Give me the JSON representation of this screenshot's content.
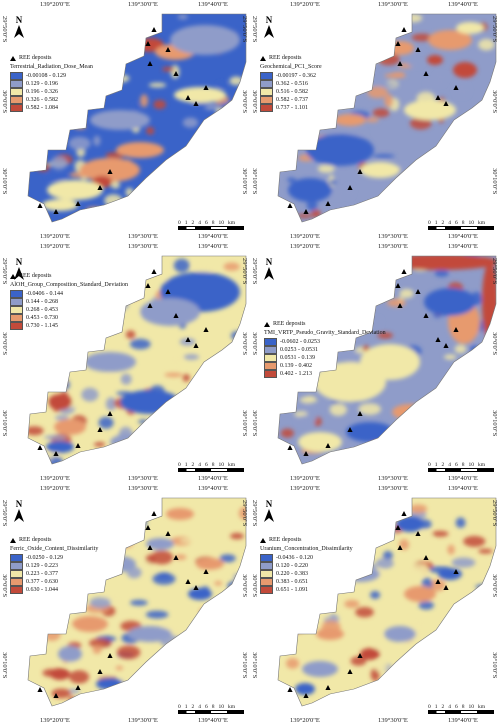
{
  "common": {
    "deposit_label": "REE deposits",
    "north": "N",
    "scale_ticks": [
      "0",
      "1",
      "2",
      "4",
      "6",
      "8",
      "10"
    ],
    "scale_unit": "km",
    "colors": [
      "#3a63c8",
      "#8f9cc9",
      "#f1e8a8",
      "#e79a6e",
      "#c24a3a"
    ],
    "lon_labels": [
      "139°20'0\"E",
      "139°30'0\"E",
      "139°40'0\"E"
    ],
    "lat_labels": [
      "29°50'0\"S",
      "30°0'0\"S",
      "30°10'0\"S"
    ]
  },
  "panels": [
    {
      "title": "Terrestrial_Radiation_Dose_Mean",
      "classes": [
        "-0.00108 - 0.129",
        "0.129 - 0.196",
        "0.196 - 0.326",
        "0.326 - 0.582",
        "0.582 - 1.084"
      ]
    },
    {
      "title": "Geochemical_PC1_Score",
      "classes": [
        "-0.00197 - 0.362",
        "0.362 - 0.516",
        "0.516 - 0.582",
        "0.582 - 0.737",
        "0.737 - 1.101"
      ]
    },
    {
      "title": "AlOH_Group_Composition_Standard_Deviation",
      "classes": [
        "-0.0406 - 0.144",
        "0.144 - 0.268",
        "0.268 - 0.453",
        "0.453 - 0.730",
        "0.730 - 1.145"
      ]
    },
    {
      "title": "TMI_VRTP_Pseudo_Gravity_Standard_Deviation",
      "classes": [
        "-0.0602 - 0.0253",
        "0.0253 - 0.0531",
        "0.0531 - 0.139",
        "0.139 - 0.402",
        "0.402 - 1.213"
      ]
    },
    {
      "title": "Ferric_Oxide_Content_Dissimilarity",
      "classes": [
        "-0.0250 - 0.129",
        "0.129 - 0.223",
        "0.223 - 0.377",
        "0.377 - 0.630",
        "0.630 - 1.044"
      ]
    },
    {
      "title": "Uranium_Concentration_Dissimilarity",
      "classes": [
        "-0.0436 - 0.120",
        "0.120 - 0.220",
        "0.220 - 0.383",
        "0.383 - 0.651",
        "0.651 - 1.091"
      ]
    }
  ]
}
